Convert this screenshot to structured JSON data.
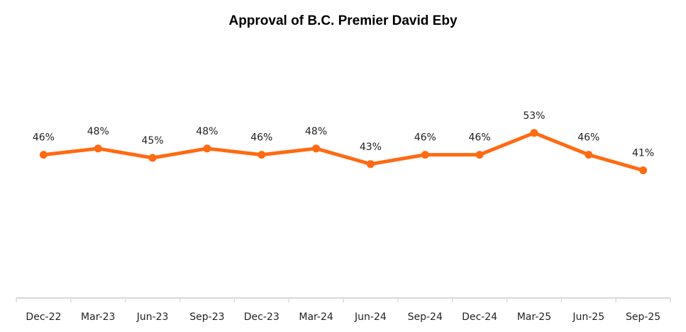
{
  "chart_data": {
    "type": "line",
    "title": "Approval of B.C. Premier David Eby",
    "xlabel": "",
    "ylabel": "",
    "categories": [
      "Dec-22",
      "Mar-23",
      "Jun-23",
      "Sep-23",
      "Dec-23",
      "Mar-24",
      "Jun-24",
      "Sep-24",
      "Dec-24",
      "Mar-25",
      "Jun-25",
      "Sep-25"
    ],
    "series": [
      {
        "name": "Approval",
        "values": [
          46,
          48,
          45,
          48,
          46,
          48,
          43,
          46,
          46,
          53,
          46,
          41
        ],
        "color": "#FF6A13"
      }
    ],
    "value_suffix": "%",
    "grid": false,
    "legend": "none",
    "axis_color": "#D9D9D9"
  }
}
